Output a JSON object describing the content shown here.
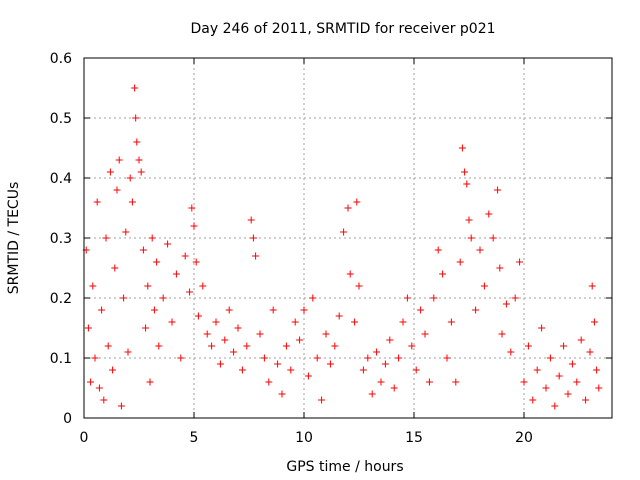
{
  "chart_data": {
    "type": "scatter",
    "title": "Day 246 of 2011, SRMTID for receiver p021",
    "xlabel": "GPS time / hours",
    "ylabel": "SRMTID / TECUs",
    "xlim": [
      0,
      24
    ],
    "ylim": [
      0,
      0.6
    ],
    "xticks": [
      0,
      5,
      10,
      15,
      20
    ],
    "xtick_labels": [
      "0",
      "5",
      "10",
      "15",
      "20"
    ],
    "yticks": [
      0,
      0.1,
      0.2,
      0.3,
      0.4,
      0.5,
      0.6
    ],
    "ytick_labels": [
      "0",
      "0.1",
      "0.2",
      "0.3",
      "0.4",
      "0.5",
      "0.6"
    ],
    "grid": true,
    "marker": "+",
    "marker_color": "#ff0000",
    "series": [
      {
        "name": "SRMTID",
        "points": [
          [
            0.1,
            0.28
          ],
          [
            0.2,
            0.15
          ],
          [
            0.3,
            0.06
          ],
          [
            0.4,
            0.22
          ],
          [
            0.5,
            0.1
          ],
          [
            0.6,
            0.36
          ],
          [
            0.7,
            0.05
          ],
          [
            0.8,
            0.18
          ],
          [
            0.9,
            0.03
          ],
          [
            1.0,
            0.3
          ],
          [
            1.1,
            0.12
          ],
          [
            1.2,
            0.41
          ],
          [
            1.3,
            0.08
          ],
          [
            1.4,
            0.25
          ],
          [
            1.5,
            0.38
          ],
          [
            1.6,
            0.43
          ],
          [
            1.7,
            0.02
          ],
          [
            1.8,
            0.2
          ],
          [
            1.9,
            0.31
          ],
          [
            2.0,
            0.11
          ],
          [
            2.1,
            0.4
          ],
          [
            2.2,
            0.36
          ],
          [
            2.3,
            0.55
          ],
          [
            2.35,
            0.5
          ],
          [
            2.4,
            0.46
          ],
          [
            2.5,
            0.43
          ],
          [
            2.6,
            0.41
          ],
          [
            2.7,
            0.28
          ],
          [
            2.8,
            0.15
          ],
          [
            2.9,
            0.22
          ],
          [
            3.0,
            0.06
          ],
          [
            3.1,
            0.3
          ],
          [
            3.2,
            0.18
          ],
          [
            3.3,
            0.26
          ],
          [
            3.4,
            0.12
          ],
          [
            3.6,
            0.2
          ],
          [
            3.8,
            0.29
          ],
          [
            4.0,
            0.16
          ],
          [
            4.2,
            0.24
          ],
          [
            4.4,
            0.1
          ],
          [
            4.6,
            0.27
          ],
          [
            4.8,
            0.21
          ],
          [
            4.9,
            0.35
          ],
          [
            5.0,
            0.32
          ],
          [
            5.1,
            0.26
          ],
          [
            5.2,
            0.17
          ],
          [
            5.4,
            0.22
          ],
          [
            5.6,
            0.14
          ],
          [
            5.8,
            0.12
          ],
          [
            6.0,
            0.16
          ],
          [
            6.2,
            0.09
          ],
          [
            6.4,
            0.13
          ],
          [
            6.6,
            0.18
          ],
          [
            6.8,
            0.11
          ],
          [
            7.0,
            0.15
          ],
          [
            7.2,
            0.08
          ],
          [
            7.4,
            0.12
          ],
          [
            7.6,
            0.33
          ],
          [
            7.7,
            0.3
          ],
          [
            7.8,
            0.27
          ],
          [
            8.0,
            0.14
          ],
          [
            8.2,
            0.1
          ],
          [
            8.4,
            0.06
          ],
          [
            8.6,
            0.18
          ],
          [
            8.8,
            0.09
          ],
          [
            9.0,
            0.04
          ],
          [
            9.2,
            0.12
          ],
          [
            9.4,
            0.08
          ],
          [
            9.6,
            0.16
          ],
          [
            9.8,
            0.13
          ],
          [
            10.0,
            0.18
          ],
          [
            10.2,
            0.07
          ],
          [
            10.4,
            0.2
          ],
          [
            10.6,
            0.1
          ],
          [
            10.8,
            0.03
          ],
          [
            11.0,
            0.14
          ],
          [
            11.2,
            0.09
          ],
          [
            11.4,
            0.12
          ],
          [
            11.6,
            0.17
          ],
          [
            11.8,
            0.31
          ],
          [
            12.0,
            0.35
          ],
          [
            12.1,
            0.24
          ],
          [
            12.3,
            0.16
          ],
          [
            12.4,
            0.36
          ],
          [
            12.5,
            0.22
          ],
          [
            12.7,
            0.08
          ],
          [
            12.9,
            0.1
          ],
          [
            13.1,
            0.04
          ],
          [
            13.3,
            0.11
          ],
          [
            13.5,
            0.06
          ],
          [
            13.7,
            0.09
          ],
          [
            13.9,
            0.13
          ],
          [
            14.1,
            0.05
          ],
          [
            14.3,
            0.1
          ],
          [
            14.5,
            0.16
          ],
          [
            14.7,
            0.2
          ],
          [
            14.9,
            0.12
          ],
          [
            15.1,
            0.08
          ],
          [
            15.3,
            0.18
          ],
          [
            15.5,
            0.14
          ],
          [
            15.7,
            0.06
          ],
          [
            15.9,
            0.2
          ],
          [
            16.1,
            0.28
          ],
          [
            16.3,
            0.24
          ],
          [
            16.5,
            0.1
          ],
          [
            16.7,
            0.16
          ],
          [
            16.9,
            0.06
          ],
          [
            17.1,
            0.26
          ],
          [
            17.2,
            0.45
          ],
          [
            17.3,
            0.41
          ],
          [
            17.4,
            0.39
          ],
          [
            17.5,
            0.33
          ],
          [
            17.6,
            0.3
          ],
          [
            17.8,
            0.18
          ],
          [
            18.0,
            0.28
          ],
          [
            18.2,
            0.22
          ],
          [
            18.4,
            0.34
          ],
          [
            18.6,
            0.3
          ],
          [
            18.8,
            0.38
          ],
          [
            18.9,
            0.25
          ],
          [
            19.0,
            0.14
          ],
          [
            19.2,
            0.19
          ],
          [
            19.4,
            0.11
          ],
          [
            19.6,
            0.2
          ],
          [
            19.8,
            0.26
          ],
          [
            20.0,
            0.06
          ],
          [
            20.2,
            0.12
          ],
          [
            20.4,
            0.03
          ],
          [
            20.6,
            0.08
          ],
          [
            20.8,
            0.15
          ],
          [
            21.0,
            0.05
          ],
          [
            21.2,
            0.1
          ],
          [
            21.4,
            0.02
          ],
          [
            21.6,
            0.07
          ],
          [
            21.8,
            0.12
          ],
          [
            22.0,
            0.04
          ],
          [
            22.2,
            0.09
          ],
          [
            22.4,
            0.06
          ],
          [
            22.6,
            0.13
          ],
          [
            22.8,
            0.03
          ],
          [
            23.0,
            0.11
          ],
          [
            23.1,
            0.22
          ],
          [
            23.2,
            0.16
          ],
          [
            23.3,
            0.08
          ],
          [
            23.4,
            0.05
          ]
        ]
      }
    ]
  }
}
